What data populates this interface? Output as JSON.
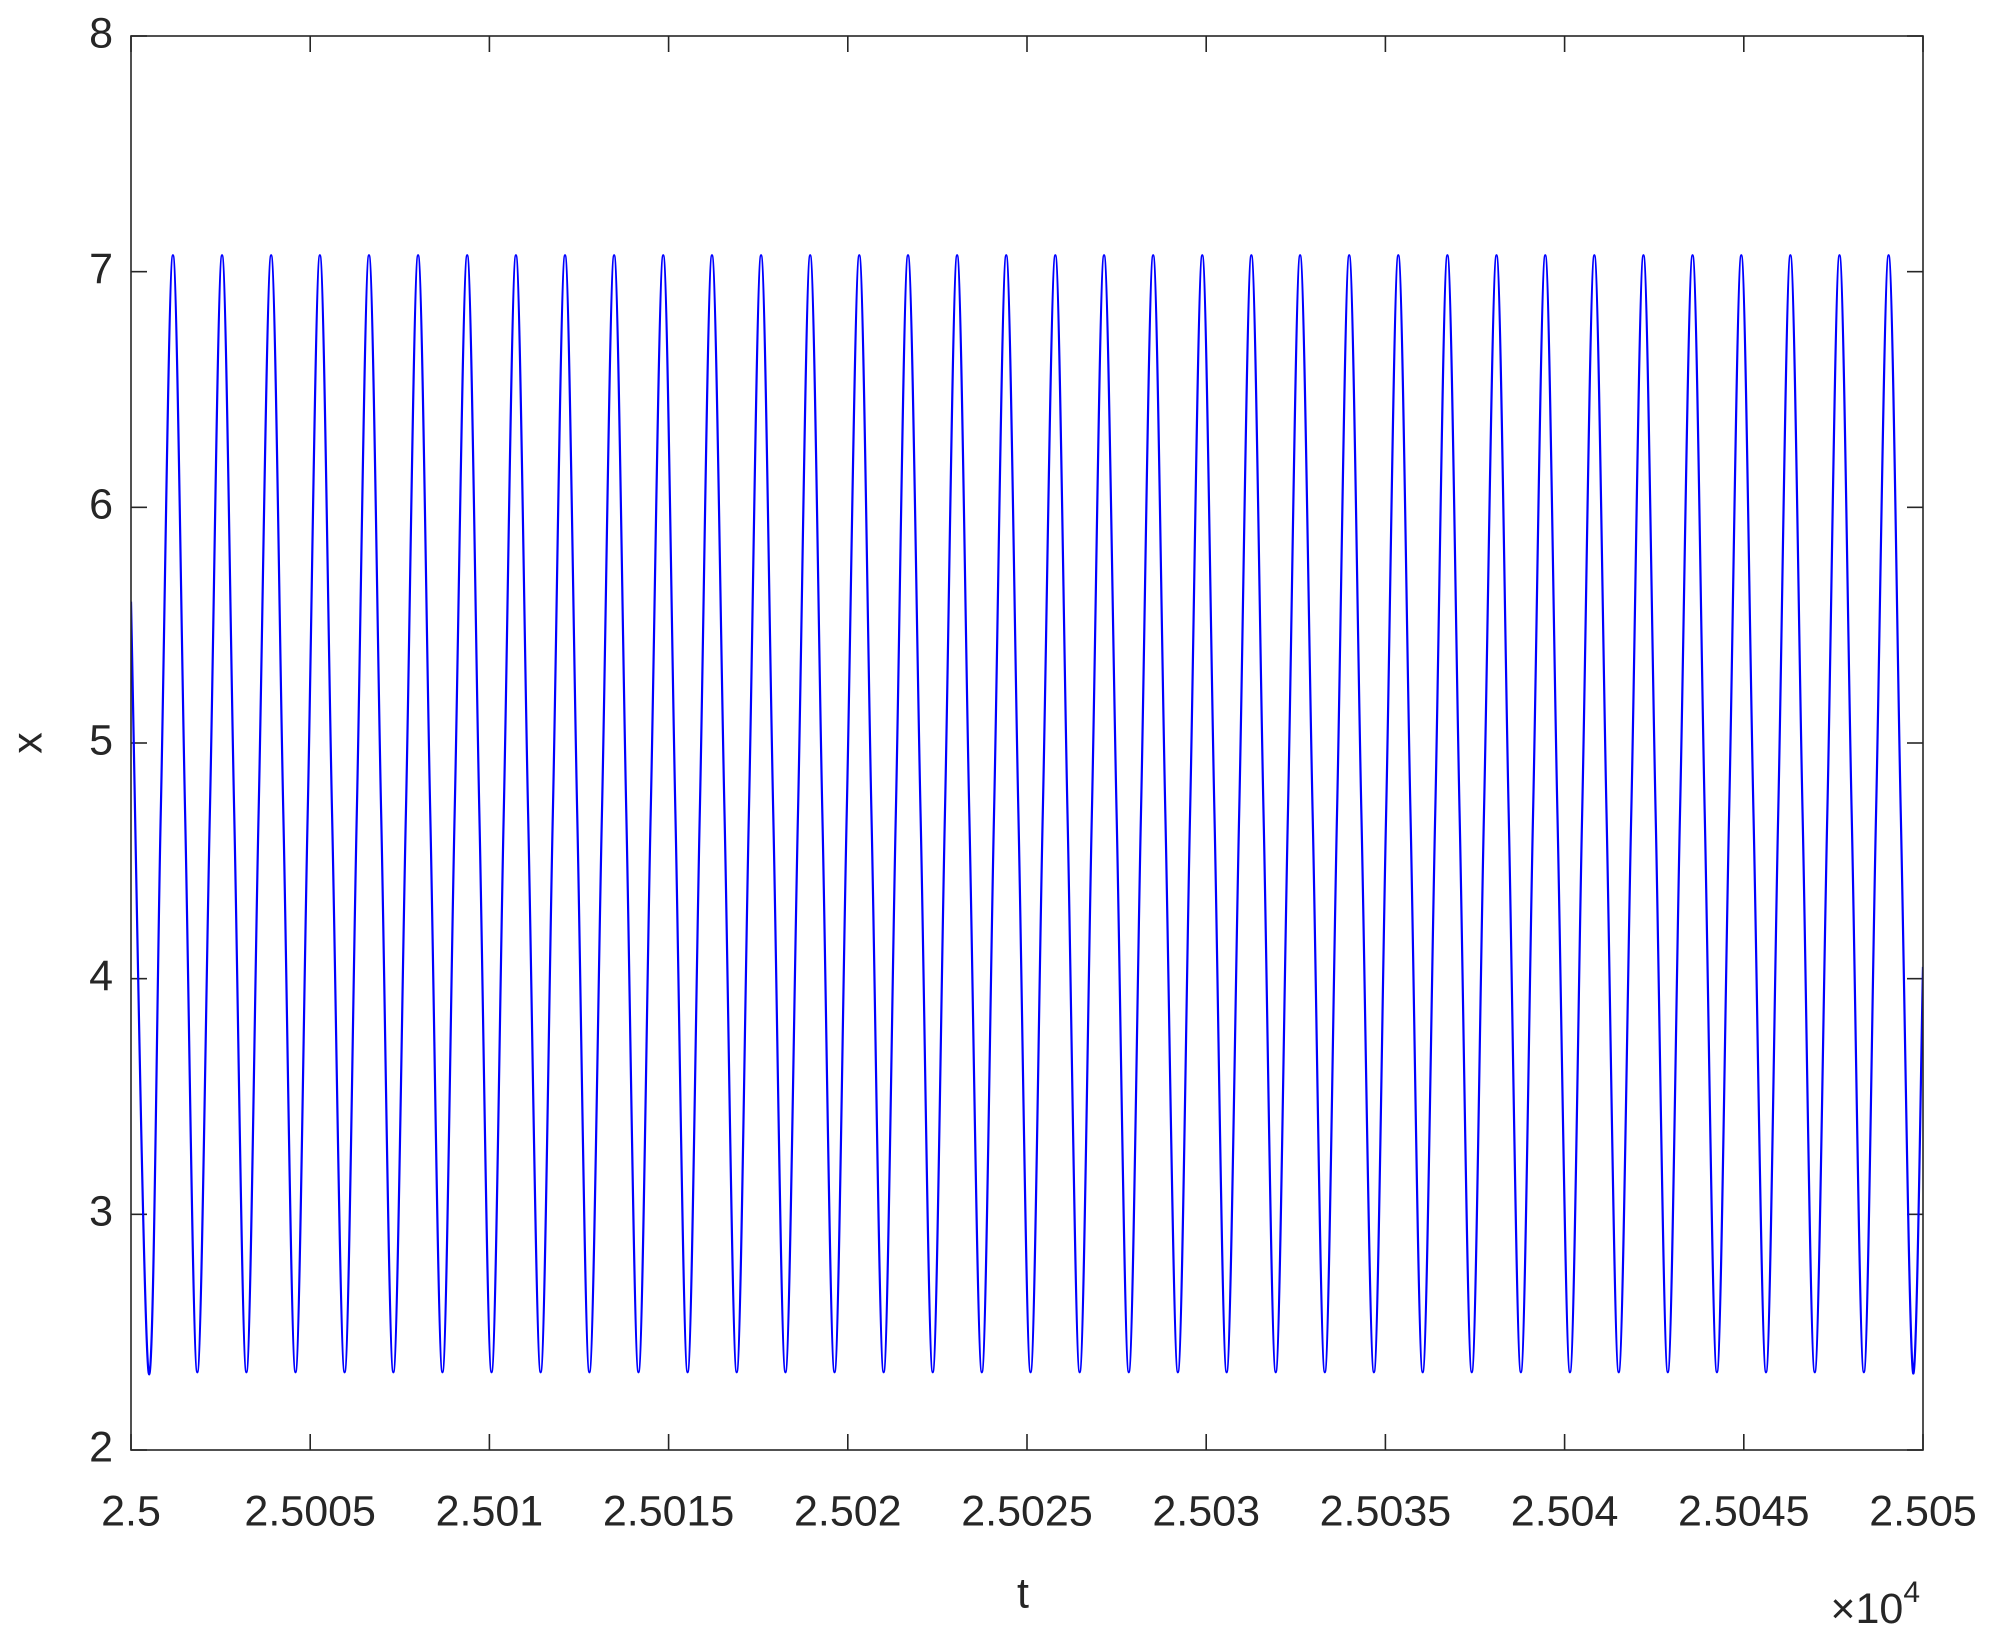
{
  "chart_data": {
    "type": "line",
    "xlabel": "t",
    "ylabel": "x",
    "x_multiplier": {
      "base": "×10",
      "exponent": "4"
    },
    "xlim": [
      25000,
      25050
    ],
    "ylim": [
      2,
      8
    ],
    "xticks": [
      {
        "value": 25000,
        "label": "2.5"
      },
      {
        "value": 25005,
        "label": "2.5005"
      },
      {
        "value": 25010,
        "label": "2.501"
      },
      {
        "value": 25015,
        "label": "2.5015"
      },
      {
        "value": 25020,
        "label": "2.502"
      },
      {
        "value": 25025,
        "label": "2.5025"
      },
      {
        "value": 25030,
        "label": "2.503"
      },
      {
        "value": 25035,
        "label": "2.5035"
      },
      {
        "value": 25040,
        "label": "2.504"
      },
      {
        "value": 25045,
        "label": "2.5045"
      },
      {
        "value": 25050,
        "label": "2.505"
      }
    ],
    "yticks": [
      2,
      3,
      4,
      5,
      6,
      7,
      8
    ],
    "grid": false,
    "box": true,
    "x": [
      25000,
      25000.49,
      25000.83,
      25001.17,
      25001.51,
      25001.85,
      25002.2,
      25002.54,
      25002.88,
      25003.22,
      25003.56,
      25003.91,
      25004.25,
      25004.59,
      25004.93,
      25005.27,
      25005.61,
      25005.96,
      25006.3,
      25006.64,
      25006.98,
      25007.32,
      25007.67,
      25008.01,
      25008.35,
      25008.69,
      25009.03,
      25009.38,
      25009.72,
      25010.06,
      25010.4,
      25010.74,
      25011.08,
      25011.43,
      25011.77,
      25012.11,
      25012.45,
      25012.79,
      25013.14,
      25013.48,
      25013.82,
      25014.16,
      25014.5,
      25014.85,
      25015.19,
      25015.53,
      25015.87,
      25016.21,
      25016.56,
      25016.9,
      25017.24,
      25017.58,
      25017.92,
      25018.26,
      25018.61,
      25018.95,
      25019.29,
      25019.63,
      25019.97,
      25020.32,
      25020.66,
      25021,
      25021.34,
      25021.68,
      25022.03,
      25022.37,
      25022.71,
      25023.05,
      25023.39,
      25023.74,
      25024.08,
      25024.42,
      25024.76,
      25025.1,
      25025.44,
      25025.79,
      25026.13,
      25026.47,
      25026.81,
      25027.15,
      25027.5,
      25027.84,
      25028.18,
      25028.52,
      25028.86,
      25029.21,
      25029.55,
      25029.89,
      25030.23,
      25030.57,
      25030.92,
      25031.26,
      25031.6,
      25031.94,
      25032.28,
      25032.62,
      25032.97,
      25033.31,
      25033.65,
      25033.99,
      25034.33,
      25034.68,
      25035.02,
      25035.36,
      25035.7,
      25036.04,
      25036.39,
      25036.73,
      25037.07,
      25037.41,
      25037.75,
      25038.1,
      25038.44,
      25038.78,
      25039.12,
      25039.46,
      25039.8,
      25040.15,
      25040.49,
      25040.83,
      25041.17,
      25041.51,
      25041.86,
      25042.2,
      25042.54,
      25042.88,
      25043.22,
      25043.57,
      25043.91,
      25044.25,
      25044.59,
      25044.93,
      25045.27,
      25045.62,
      25045.96,
      25046.3,
      25046.64,
      25046.98,
      25047.33,
      25047.67,
      25048.01,
      25048.35,
      25048.69,
      25049.04,
      25049.38,
      25049.72,
      25050
    ],
    "series": [
      {
        "color": "#0000ff",
        "values": [
          5.6,
          2.33,
          4.7,
          7.07,
          4.7,
          2.33,
          4.7,
          7.07,
          4.7,
          2.33,
          4.7,
          7.07,
          4.7,
          2.33,
          4.7,
          7.07,
          4.7,
          2.33,
          4.7,
          7.07,
          4.7,
          2.33,
          4.7,
          7.07,
          4.7,
          2.33,
          4.7,
          7.07,
          4.7,
          2.33,
          4.7,
          7.07,
          4.7,
          2.33,
          4.7,
          7.07,
          4.7,
          2.33,
          4.7,
          7.07,
          4.7,
          2.33,
          4.7,
          7.07,
          4.7,
          2.33,
          4.7,
          7.07,
          4.7,
          2.33,
          4.7,
          7.07,
          4.7,
          2.33,
          4.7,
          7.07,
          4.7,
          2.33,
          4.7,
          7.07,
          4.7,
          2.33,
          4.7,
          7.07,
          4.7,
          2.33,
          4.7,
          7.07,
          4.7,
          2.33,
          4.7,
          7.07,
          4.7,
          2.33,
          4.7,
          7.07,
          4.7,
          2.33,
          4.7,
          7.07,
          4.7,
          2.33,
          4.7,
          7.07,
          4.7,
          2.33,
          4.7,
          7.07,
          4.7,
          2.33,
          4.7,
          7.07,
          4.7,
          2.33,
          4.7,
          7.07,
          4.7,
          2.33,
          4.7,
          7.07,
          4.7,
          2.33,
          4.7,
          7.07,
          4.7,
          2.33,
          4.7,
          7.07,
          4.7,
          2.33,
          4.7,
          7.07,
          4.7,
          2.33,
          4.7,
          7.07,
          4.7,
          2.33,
          4.7,
          7.07,
          4.7,
          2.33,
          4.7,
          7.07,
          4.7,
          2.33,
          4.7,
          7.07,
          4.7,
          2.33,
          4.7,
          7.07,
          4.7,
          2.33,
          4.7,
          7.07,
          4.7,
          2.33,
          4.7,
          7.07,
          4.7,
          2.33,
          4.7,
          7.07,
          4.7,
          2.33,
          4.05
        ]
      }
    ]
  }
}
